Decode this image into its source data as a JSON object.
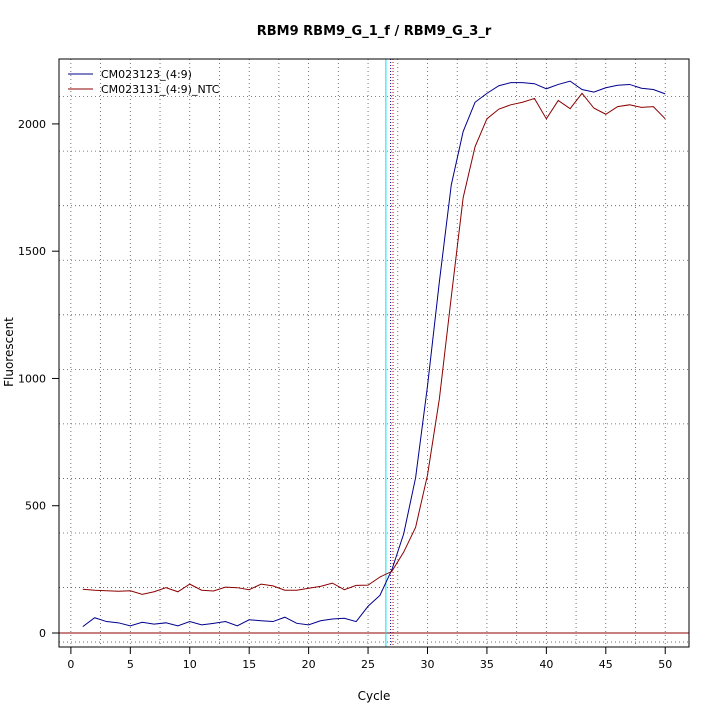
{
  "chart_data": {
    "type": "line",
    "title": "RBM9  RBM9_G_1_f / RBM9_G_3_r",
    "xlabel": "Cycle",
    "ylabel": "Fluorescent",
    "xlim": [
      -1,
      52
    ],
    "ylim": [
      -55,
      2255
    ],
    "x_ticks": [
      0,
      5,
      10,
      15,
      20,
      25,
      30,
      35,
      40,
      45,
      50
    ],
    "y_ticks": [
      0,
      500,
      1000,
      1500,
      2000
    ],
    "grid": true,
    "grid_style": "dotted",
    "legend_position": "top-left",
    "x": [
      1,
      2,
      3,
      4,
      5,
      6,
      7,
      8,
      9,
      10,
      11,
      12,
      13,
      14,
      15,
      16,
      17,
      18,
      19,
      20,
      21,
      22,
      23,
      24,
      25,
      26,
      27,
      28,
      29,
      30,
      31,
      32,
      33,
      34,
      35,
      36,
      37,
      38,
      39,
      40,
      41,
      42,
      43,
      44,
      45,
      46,
      47,
      48,
      49,
      50
    ],
    "series": [
      {
        "name": "CM023123_(4:9)",
        "color": "#00008b",
        "values": [
          25,
          60,
          45,
          40,
          28,
          42,
          35,
          40,
          28,
          45,
          32,
          38,
          45,
          28,
          52,
          48,
          45,
          62,
          38,
          32,
          48,
          55,
          58,
          45,
          105,
          148,
          248,
          390,
          610,
          970,
          1380,
          1760,
          1970,
          2085,
          2120,
          2150,
          2162,
          2162,
          2158,
          2138,
          2155,
          2168,
          2135,
          2125,
          2142,
          2152,
          2155,
          2140,
          2135,
          2118
        ]
      },
      {
        "name": "CM023131_(4:9)_NTC",
        "color": "#8b0000",
        "values": [
          172,
          168,
          166,
          164,
          166,
          152,
          162,
          178,
          162,
          192,
          168,
          165,
          180,
          178,
          170,
          192,
          185,
          168,
          168,
          176,
          183,
          196,
          170,
          187,
          188,
          220,
          242,
          318,
          415,
          620,
          920,
          1320,
          1710,
          1910,
          2020,
          2058,
          2075,
          2085,
          2100,
          2020,
          2092,
          2060,
          2120,
          2062,
          2038,
          2068,
          2075,
          2065,
          2068,
          2020
        ]
      }
    ],
    "vlines": [
      {
        "x": 26.5,
        "color": "#00e5ee"
      },
      {
        "x": 26.9,
        "color": "#00008b",
        "dotted": true
      },
      {
        "x": 27.1,
        "color": "#cc0000",
        "dotted": true
      }
    ],
    "hline": {
      "y": 0,
      "color": "#8b0000"
    }
  }
}
